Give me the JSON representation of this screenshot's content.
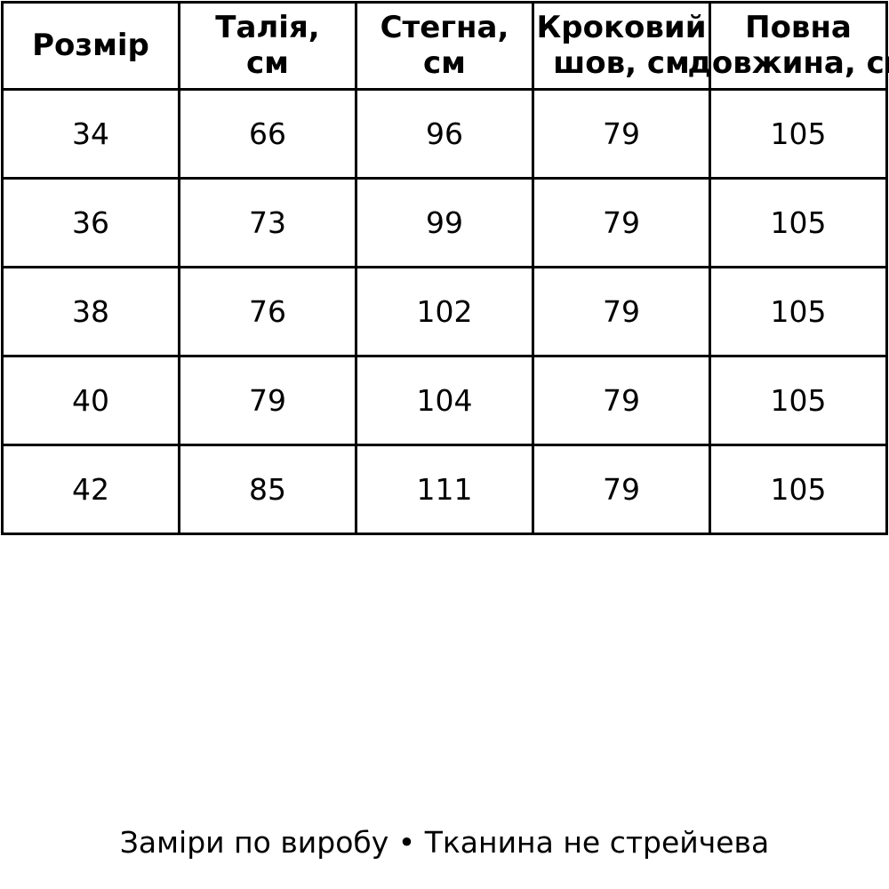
{
  "table": {
    "headers": [
      {
        "label": "Розмір",
        "lines": [
          "Розмір",
          ""
        ]
      },
      {
        "label": "Талія, см",
        "lines": [
          "Талія,",
          "см"
        ]
      },
      {
        "label": "Стегна, см",
        "lines": [
          "Стегна,",
          "см"
        ]
      },
      {
        "label": "Кроковий шов, см",
        "lines": [
          "Кроковий",
          "шов, см"
        ]
      },
      {
        "label": "Повна довжина, см",
        "lines": [
          "Повна",
          "довжина, см"
        ]
      }
    ],
    "rows": [
      [
        "34",
        "66",
        "96",
        "79",
        "105"
      ],
      [
        "36",
        "73",
        "99",
        "79",
        "105"
      ],
      [
        "38",
        "76",
        "102",
        "79",
        "105"
      ],
      [
        "40",
        "79",
        "104",
        "79",
        "105"
      ],
      [
        "42",
        "85",
        "111",
        "79",
        "105"
      ]
    ]
  },
  "footer": {
    "note": "Заміри по виробу • Тканина не стрейчева"
  },
  "colors": {
    "background": "#ffffff",
    "border": "#000000",
    "text": "#000000"
  },
  "chart_data": {
    "type": "table",
    "title": "",
    "columns": [
      "Розмір",
      "Талія, см",
      "Стегна, см",
      "Кроковий шов, см",
      "Повна довжина, см"
    ],
    "rows": [
      [
        34,
        66,
        96,
        79,
        105
      ],
      [
        36,
        73,
        99,
        79,
        105
      ],
      [
        38,
        76,
        102,
        79,
        105
      ],
      [
        40,
        79,
        104,
        79,
        105
      ],
      [
        42,
        85,
        111,
        79,
        105
      ]
    ],
    "footnote": "Заміри по виробу • Тканина не стрейчева",
    "layout": {
      "grid": true,
      "border_px": 3,
      "last_column_text_clipped_at_right_edge": true
    }
  }
}
